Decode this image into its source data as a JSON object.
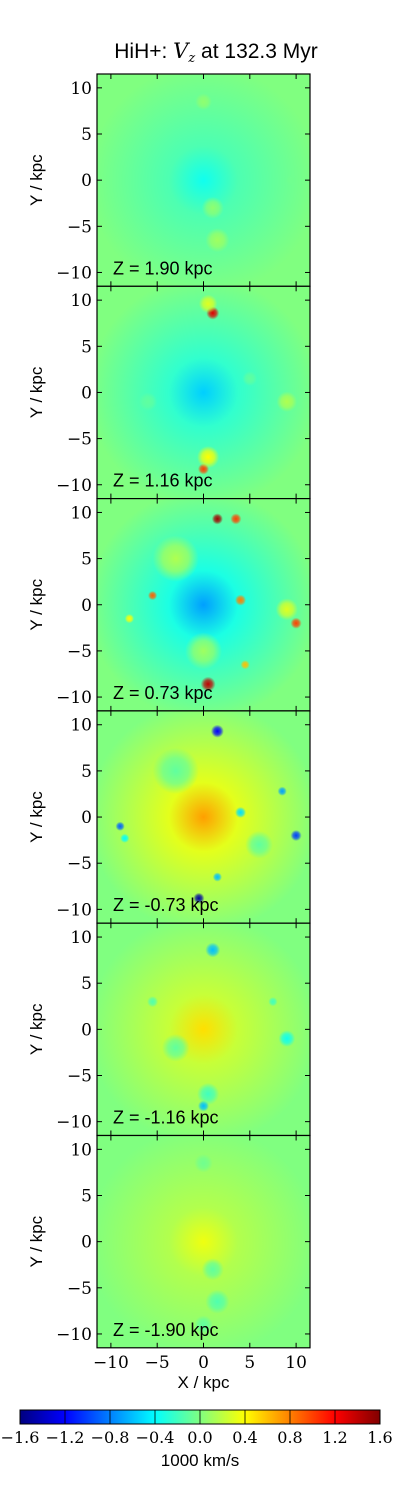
{
  "figure": {
    "title_prefix": "HiH+: ",
    "title_var": "V",
    "title_sub": "z",
    "title_suffix": " at 132.3 Myr"
  },
  "chart_data": {
    "type": "heatmap",
    "title": "HiH+: V_z at 132.3 Myr",
    "xlabel": "X / kpc",
    "ylabel": "Y / kpc",
    "xlim": [
      -11.5,
      11.5
    ],
    "ylim": [
      -11.5,
      11.5
    ],
    "x_ticks": [
      -10,
      -5,
      0,
      5,
      10
    ],
    "y_ticks": [
      -10,
      -5,
      0,
      5,
      10
    ],
    "x_tick_labels": [
      "−10",
      "−5",
      "0",
      "5",
      "10"
    ],
    "y_tick_labels": [
      "−10",
      "−5",
      "0",
      "5",
      "10"
    ],
    "panels": [
      {
        "label": "Z = 1.90 kpc",
        "z": 1.9,
        "center_value": -0.35,
        "features": [
          {
            "x": 0,
            "y": 8.5,
            "v": 0.05,
            "r": 0.9
          },
          {
            "x": 1,
            "y": -3,
            "v": 0.05,
            "r": 1.2
          },
          {
            "x": 1.5,
            "y": -6.5,
            "v": 0.1,
            "r": 1.3
          },
          {
            "x": 9.5,
            "y": 0,
            "v": -0.05,
            "r": 0.6
          }
        ]
      },
      {
        "label": "Z = 1.16 kpc",
        "z": 1.16,
        "center_value": -0.55,
        "features": [
          {
            "x": 1,
            "y": 8.6,
            "v": 1.3,
            "r": 0.7
          },
          {
            "x": 0.5,
            "y": 9.6,
            "v": 0.3,
            "r": 1.0
          },
          {
            "x": 0,
            "y": -8.3,
            "v": 1.0,
            "r": 0.6
          },
          {
            "x": 0.5,
            "y": -7.0,
            "v": 0.4,
            "r": 1.2
          },
          {
            "x": 9,
            "y": -1,
            "v": 0.15,
            "r": 1.1
          },
          {
            "x": -6,
            "y": -1,
            "v": -0.1,
            "r": 1.0
          },
          {
            "x": 5,
            "y": 1.5,
            "v": -0.1,
            "r": 0.8
          }
        ]
      },
      {
        "label": "Z = 0.73 kpc",
        "z": 0.73,
        "center_value": -0.7,
        "features": [
          {
            "x": 1.5,
            "y": 9.3,
            "v": 1.5,
            "r": 0.6
          },
          {
            "x": 3.5,
            "y": 9.3,
            "v": 1.0,
            "r": 0.6
          },
          {
            "x": 0.5,
            "y": -8.6,
            "v": 1.4,
            "r": 0.8
          },
          {
            "x": -5.5,
            "y": 1,
            "v": 0.9,
            "r": 0.5
          },
          {
            "x": 4,
            "y": 0.5,
            "v": 0.8,
            "r": 0.6
          },
          {
            "x": 10,
            "y": -2,
            "v": 1.0,
            "r": 0.6
          },
          {
            "x": 9,
            "y": -0.5,
            "v": 0.3,
            "r": 1.2
          },
          {
            "x": 4.5,
            "y": -6.5,
            "v": 0.6,
            "r": 0.5
          },
          {
            "x": -8,
            "y": -1.5,
            "v": 0.4,
            "r": 0.5
          },
          {
            "x": -3,
            "y": 5,
            "v": 0.15,
            "r": 2.5
          },
          {
            "x": 0,
            "y": -5,
            "v": 0.1,
            "r": 2.0
          }
        ]
      },
      {
        "label": "Z = -0.73 kpc",
        "z": -0.73,
        "center_value": 0.7,
        "features": [
          {
            "x": 1.5,
            "y": 9.3,
            "v": -1.2,
            "r": 0.7
          },
          {
            "x": -0.5,
            "y": -8.8,
            "v": -1.5,
            "r": 0.6
          },
          {
            "x": 10,
            "y": -2,
            "v": -1.0,
            "r": 0.6
          },
          {
            "x": -9,
            "y": -1,
            "v": -0.9,
            "r": 0.5
          },
          {
            "x": -8.5,
            "y": -2.3,
            "v": -0.4,
            "r": 0.5
          },
          {
            "x": 4,
            "y": 0.5,
            "v": -0.5,
            "r": 0.6
          },
          {
            "x": 8.5,
            "y": 2.8,
            "v": -0.7,
            "r": 0.5
          },
          {
            "x": 1.5,
            "y": -6.5,
            "v": -0.6,
            "r": 0.5
          },
          {
            "x": -3,
            "y": 5,
            "v": -0.1,
            "r": 2.5
          },
          {
            "x": 6,
            "y": -3,
            "v": -0.1,
            "r": 1.5
          }
        ]
      },
      {
        "label": "Z = -1.16 kpc",
        "z": -1.16,
        "center_value": 0.5,
        "features": [
          {
            "x": 1,
            "y": 8.6,
            "v": -0.6,
            "r": 0.8
          },
          {
            "x": 0,
            "y": -8.3,
            "v": -0.6,
            "r": 0.6
          },
          {
            "x": 0.5,
            "y": -7.0,
            "v": -0.2,
            "r": 1.2
          },
          {
            "x": 9,
            "y": -1,
            "v": -0.35,
            "r": 0.9
          },
          {
            "x": 7.5,
            "y": 3,
            "v": -0.2,
            "r": 0.5
          },
          {
            "x": -5.5,
            "y": 3,
            "v": -0.15,
            "r": 0.6
          },
          {
            "x": -3,
            "y": -2,
            "v": -0.1,
            "r": 1.5
          }
        ]
      },
      {
        "label": "Z = -1.90 kpc",
        "z": -1.9,
        "center_value": 0.35,
        "features": [
          {
            "x": 0,
            "y": 8.5,
            "v": -0.05,
            "r": 1.0
          },
          {
            "x": 1,
            "y": -3,
            "v": -0.1,
            "r": 1.2
          },
          {
            "x": 1.5,
            "y": -6.5,
            "v": -0.15,
            "r": 1.3
          },
          {
            "x": 0,
            "y": -9,
            "v": -0.1,
            "r": 1.0
          }
        ]
      }
    ],
    "colorbar": {
      "label": "1000 km/s",
      "range": [
        -1.6,
        1.6
      ],
      "ticks": [
        -1.6,
        -1.2,
        -0.8,
        -0.4,
        0.0,
        0.4,
        0.8,
        1.2,
        1.6
      ],
      "tick_labels": [
        "−1.6",
        "−1.2",
        "−0.8",
        "−0.4",
        "0.0",
        "0.4",
        "0.8",
        "1.2",
        "1.6"
      ],
      "colormap": "jet"
    }
  }
}
